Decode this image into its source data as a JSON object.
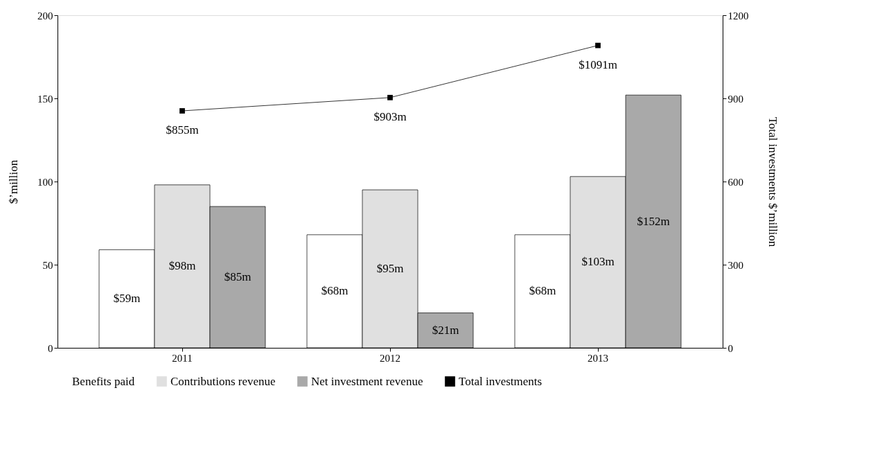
{
  "chart_data": {
    "type": "bar",
    "ylabel": "$’million",
    "y2label": "Total investments $’million",
    "categories": [
      "2011",
      "2012",
      "2013"
    ],
    "ylim": [
      0,
      200
    ],
    "yticks": [
      0,
      50,
      100,
      150,
      200
    ],
    "y2lim": [
      0,
      1200
    ],
    "y2ticks": [
      0,
      300,
      600,
      900,
      1200
    ],
    "legend": "bottom",
    "grid": false,
    "series": [
      {
        "name": "Benefits paid",
        "color": "#ffffff",
        "values": [
          59,
          68,
          68
        ],
        "value_labels": [
          "$59m",
          "$68m",
          "$68m"
        ]
      },
      {
        "name": "Contributions revenue",
        "color": "#e0e0e0",
        "values": [
          98,
          95,
          103
        ],
        "value_labels": [
          "$98m",
          "$95m",
          "$103m"
        ]
      },
      {
        "name": "Net investment revenue",
        "color": "#a9a9a9",
        "values": [
          85,
          21,
          152
        ],
        "value_labels": [
          "$85m",
          "$21m",
          "$152m"
        ]
      },
      {
        "name": "Total investments",
        "color": "#000000",
        "type": "line",
        "axis": "y2",
        "marker": "square",
        "values": [
          855,
          903,
          1091
        ],
        "value_labels": [
          "$855m",
          "$903m",
          "$1091m"
        ]
      }
    ]
  }
}
